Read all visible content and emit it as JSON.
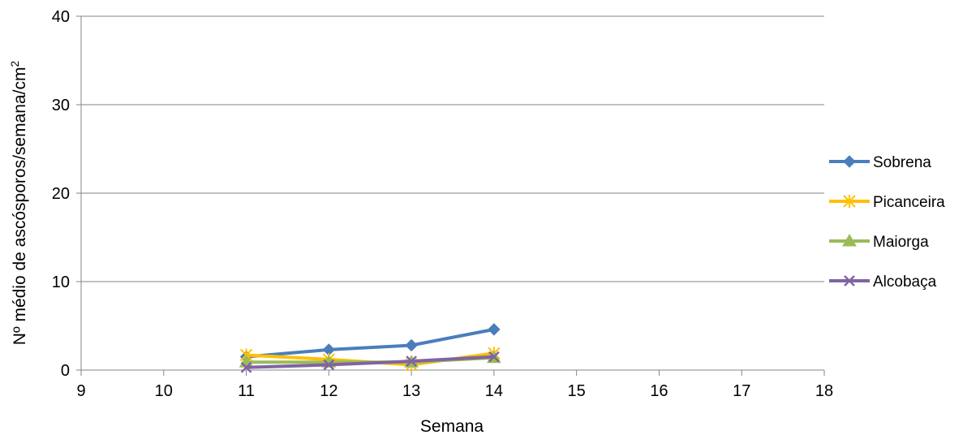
{
  "chart_data": {
    "type": "line",
    "xlabel": "Semana",
    "ylabel": "Nº médio de ascósporos/semana/cm",
    "ylabel_superscript": "2",
    "xlim": [
      9,
      18
    ],
    "ylim": [
      0,
      40
    ],
    "x_ticks": [
      "9",
      "10",
      "11",
      "12",
      "13",
      "14",
      "15",
      "16",
      "17",
      "18"
    ],
    "y_ticks": [
      "0",
      "10",
      "20",
      "30",
      "40"
    ],
    "grid": "horizontal",
    "legend_position": "right",
    "series": [
      {
        "name": "Sobrena",
        "color": "#4a7ebb",
        "marker": "diamond",
        "x": [
          11,
          12,
          13,
          14
        ],
        "y": [
          1.5,
          2.3,
          2.8,
          4.6
        ]
      },
      {
        "name": "Picanceira",
        "color": "#ffc000",
        "marker": "asterisk",
        "x": [
          11,
          12,
          13,
          14
        ],
        "y": [
          1.7,
          1.2,
          0.6,
          1.9
        ]
      },
      {
        "name": "Maiorga",
        "color": "#9bbb59",
        "marker": "triangle",
        "x": [
          11,
          12,
          13,
          14
        ],
        "y": [
          0.9,
          0.9,
          0.9,
          1.4
        ]
      },
      {
        "name": "Alcobaça",
        "color": "#8064a2",
        "marker": "x",
        "x": [
          11,
          12,
          13,
          14
        ],
        "y": [
          0.3,
          0.6,
          1.0,
          1.5
        ]
      }
    ]
  }
}
